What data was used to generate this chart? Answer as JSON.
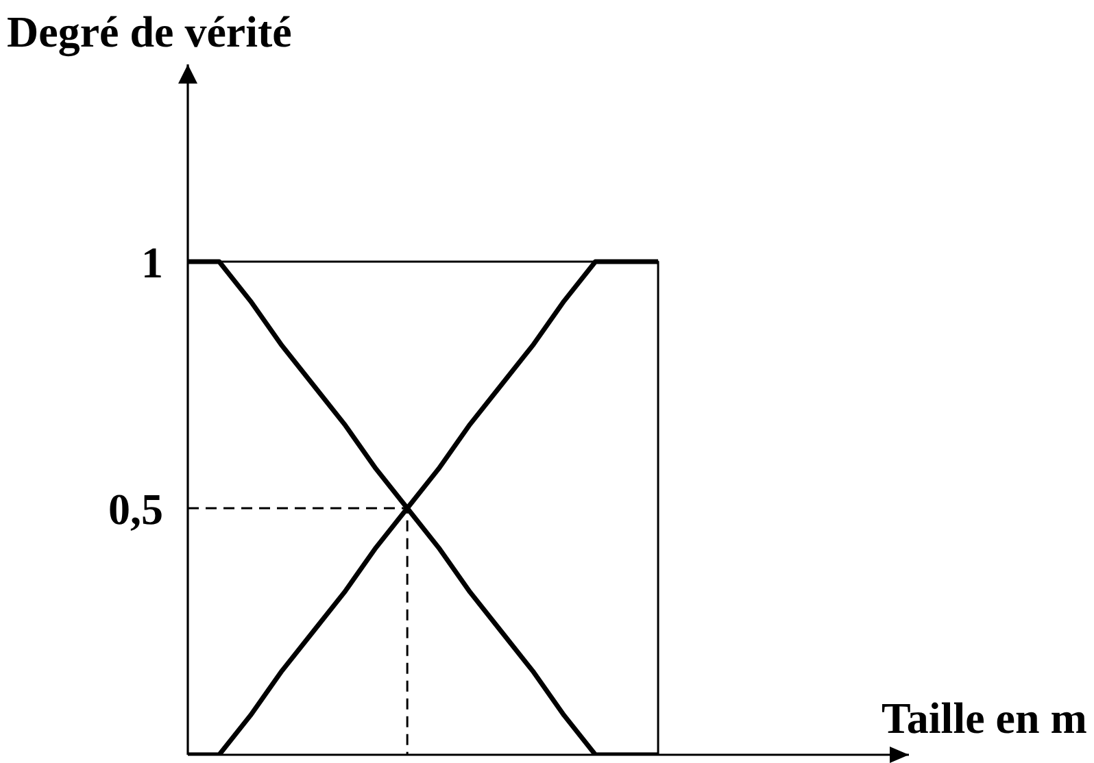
{
  "chart_data": {
    "type": "line",
    "ylabel": "Degré de vérité",
    "xlabel": "Taille en m",
    "categories": [
      null,
      null,
      null,
      null,
      null,
      null,
      null,
      null,
      null,
      null,
      null,
      null,
      null,
      null,
      null,
      null,
      null,
      null,
      null,
      null,
      null,
      null,
      null,
      null
    ],
    "series": [
      {
        "color": "#000000",
        "values": [
          1,
          1,
          0.92,
          0.83,
          0.75,
          0.67,
          0.58,
          0.5,
          0.42,
          0.33,
          0.25,
          0.17,
          0.08,
          0,
          0,
          0,
          null,
          null,
          null,
          null,
          null,
          null,
          null,
          null
        ]
      },
      {
        "color": "#000000",
        "values": [
          0,
          0,
          0.08,
          0.17,
          0.25,
          0.33,
          0.42,
          0.5,
          0.58,
          0.67,
          0.75,
          0.83,
          0.92,
          1,
          1,
          1,
          null,
          null,
          null,
          null,
          null,
          null,
          null,
          null
        ]
      },
      {
        "type": "step",
        "color": "#000000",
        "values": [
          1,
          1,
          1,
          1,
          1,
          1,
          1,
          1,
          1,
          1,
          1,
          1,
          1,
          1,
          1,
          0,
          null,
          null,
          null,
          null,
          null,
          null,
          null,
          null
        ]
      },
      {
        "type": "step",
        "color": "#000000",
        "line_style": "dashed",
        "values": [
          0.5,
          0.5,
          0.5,
          0.5,
          0.5,
          0.5,
          0.5,
          0,
          null,
          null,
          null,
          null,
          null,
          null,
          null,
          null,
          null,
          null,
          null,
          null,
          null,
          null,
          null,
          null
        ]
      }
    ],
    "ylim": [
      0,
      1.4
    ],
    "yticks": [
      {
        "value": 0.5,
        "label": "0,5"
      },
      1
    ],
    "tick_labels": "y",
    "marker": "none"
  }
}
